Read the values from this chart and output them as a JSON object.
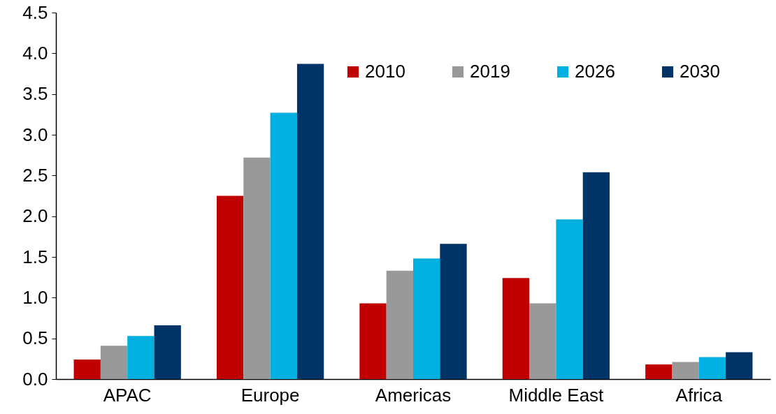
{
  "chart_data": {
    "type": "bar",
    "categories": [
      "APAC",
      "Europe",
      "Americas",
      "Middle East",
      "Africa"
    ],
    "series": [
      {
        "name": "2010",
        "color": "#c00000",
        "values": [
          0.24,
          2.25,
          0.93,
          1.24,
          0.18
        ]
      },
      {
        "name": "2019",
        "color": "#999999",
        "values": [
          0.41,
          2.72,
          1.33,
          0.93,
          0.21
        ]
      },
      {
        "name": "2026",
        "color": "#00b0e0",
        "values": [
          0.53,
          3.27,
          1.48,
          1.96,
          0.27
        ]
      },
      {
        "name": "2030",
        "color": "#003366",
        "values": [
          0.66,
          3.87,
          1.66,
          2.54,
          0.33
        ]
      }
    ],
    "ylim": [
      0,
      4.5
    ],
    "yticks": [
      {
        "value": 0,
        "label": "0.0"
      },
      {
        "value": 0.5,
        "label": "0.5"
      },
      {
        "value": 1,
        "label": "1.0"
      },
      {
        "value": 1.5,
        "label": "1.5"
      },
      {
        "value": 2,
        "label": "2.0"
      },
      {
        "value": 2.5,
        "label": "2.5"
      },
      {
        "value": 3,
        "label": "3.0"
      },
      {
        "value": 3.5,
        "label": "3.5"
      },
      {
        "value": 4,
        "label": "4.0"
      },
      {
        "value": 4.5,
        "label": "4.5"
      }
    ],
    "grid": false,
    "legend": "top right"
  }
}
